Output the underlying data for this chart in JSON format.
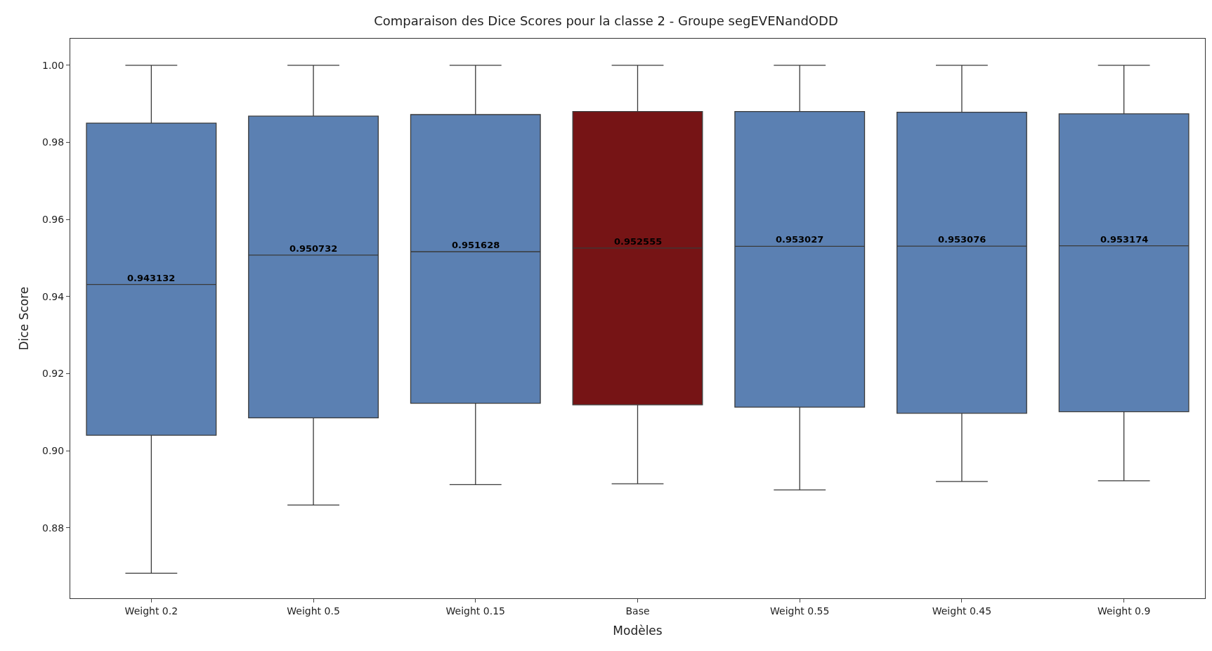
{
  "chart_data": {
    "type": "box",
    "title": "Comparaison des Dice Scores pour la classe 2 - Groupe segEVENandODD",
    "xlabel": "Modèles",
    "ylabel": "Dice Score",
    "categories": [
      "Weight 0.2",
      "Weight 0.5",
      "Weight 0.15",
      "Base",
      "Weight 0.55",
      "Weight 0.45",
      "Weight 0.9"
    ],
    "colors": [
      "#5b80b2",
      "#5b80b2",
      "#5b80b2",
      "#761415",
      "#5b80b2",
      "#5b80b2",
      "#5b80b2"
    ],
    "boxes": [
      {
        "low": 0.8682,
        "q1": 0.904,
        "median": 0.943132,
        "q3": 0.985,
        "high": 1.0
      },
      {
        "low": 0.8859,
        "q1": 0.9085,
        "median": 0.950732,
        "q3": 0.9868,
        "high": 1.0
      },
      {
        "low": 0.8912,
        "q1": 0.9123,
        "median": 0.951628,
        "q3": 0.9872,
        "high": 1.0
      },
      {
        "low": 0.8914,
        "q1": 0.9119,
        "median": 0.952555,
        "q3": 0.988,
        "high": 1.0
      },
      {
        "low": 0.8898,
        "q1": 0.9113,
        "median": 0.953027,
        "q3": 0.988,
        "high": 1.0
      },
      {
        "low": 0.892,
        "q1": 0.9097,
        "median": 0.953076,
        "q3": 0.9878,
        "high": 1.0
      },
      {
        "low": 0.8922,
        "q1": 0.9101,
        "median": 0.953174,
        "q3": 0.9874,
        "high": 1.0
      }
    ],
    "value_labels": [
      "0.943132",
      "0.950732",
      "0.951628",
      "0.952555",
      "0.953027",
      "0.953076",
      "0.953174"
    ],
    "ylim": [
      0.8617,
      1.0069
    ],
    "yticks": [
      {
        "value": 0.88,
        "label": "0.88"
      },
      {
        "value": 0.9,
        "label": "0.90"
      },
      {
        "value": 0.92,
        "label": "0.92"
      },
      {
        "value": 0.94,
        "label": "0.94"
      },
      {
        "value": 0.96,
        "label": "0.96"
      },
      {
        "value": 0.98,
        "label": "0.98"
      },
      {
        "value": 1.0,
        "label": "1.00"
      }
    ]
  }
}
